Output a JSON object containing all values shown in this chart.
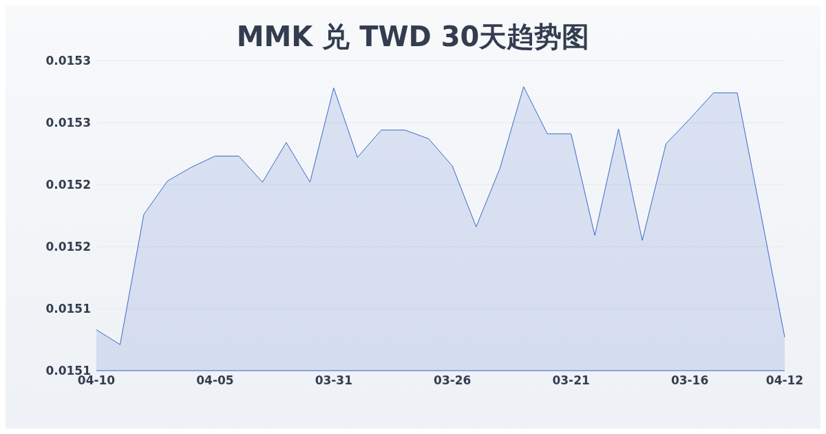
{
  "chart_data": {
    "type": "area",
    "title": "MMK 兑 TWD 30天趋势图",
    "categories": [
      "04-10",
      null,
      null,
      null,
      null,
      "04-05",
      null,
      null,
      null,
      null,
      "03-31",
      null,
      null,
      null,
      null,
      "03-26",
      null,
      null,
      null,
      null,
      "03-21",
      null,
      null,
      null,
      null,
      "03-16",
      null,
      null,
      null,
      "04-12"
    ],
    "series": [
      {
        "color": "#3a68c8",
        "values": [
          0.015113,
          0.015101,
          0.015206,
          0.015233,
          0.015244,
          0.015253,
          0.015253,
          0.015232,
          0.015264,
          0.015232,
          0.015308,
          0.015252,
          0.015274,
          0.015274,
          0.015267,
          0.015245,
          0.015196,
          0.015243,
          0.015309,
          0.015271,
          0.015271,
          0.015189,
          0.015275,
          0.015185,
          0.015263,
          0.015283,
          0.015304,
          0.015304,
          0.015206,
          0.015107
        ]
      }
    ],
    "ylim": [
      0.01508,
      0.01533
    ],
    "yticks": [
      {
        "value": 0.01508,
        "label": "0.0151"
      },
      {
        "value": 0.01513,
        "label": "0.0151"
      },
      {
        "value": 0.01518,
        "label": "0.0152"
      },
      {
        "value": 0.01523,
        "label": "0.0152"
      },
      {
        "value": 0.01528,
        "label": "0.0153"
      },
      {
        "value": 0.01533,
        "label": "0.0153"
      }
    ],
    "grid": "y",
    "legend": false,
    "marker": "none",
    "line_style": "solid"
  }
}
